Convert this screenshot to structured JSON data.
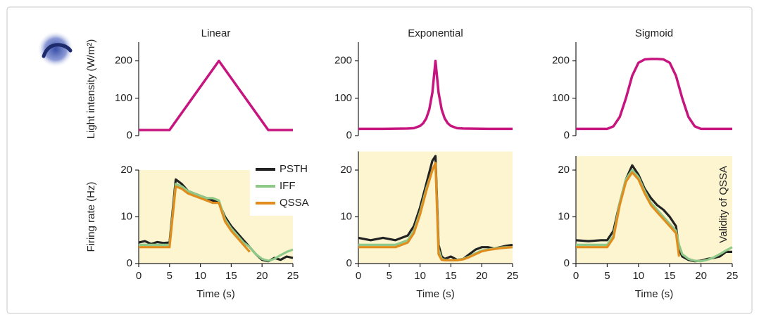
{
  "chart_data": [
    {
      "type": "line",
      "title": "Linear",
      "ylabel": "Light intensity (W/m²)",
      "xlim": [
        0,
        25
      ],
      "ylim": [
        0,
        250
      ],
      "yticks": [
        0,
        100,
        200
      ],
      "x": [
        0,
        5,
        13,
        21,
        25
      ],
      "values": [
        15,
        15,
        200,
        15,
        15
      ],
      "color": "#c7157f"
    },
    {
      "type": "line",
      "title": "Exponential",
      "xlim": [
        0,
        25
      ],
      "ylim": [
        0,
        250
      ],
      "yticks": [
        0,
        100,
        200
      ],
      "x": [
        0,
        4,
        8,
        9,
        10,
        10.5,
        11,
        11.5,
        12,
        12.5,
        13,
        13.5,
        14,
        14.5,
        15,
        16,
        17,
        21,
        25
      ],
      "values": [
        18,
        18,
        19,
        20,
        26,
        33,
        46,
        70,
        115,
        200,
        115,
        70,
        46,
        33,
        26,
        20,
        19,
        18,
        18
      ],
      "color": "#c7157f"
    },
    {
      "type": "line",
      "title": "Sigmoid",
      "xlim": [
        0,
        25
      ],
      "ylim": [
        0,
        250
      ],
      "yticks": [
        0,
        100,
        200
      ],
      "x": [
        0,
        5,
        6,
        7,
        8,
        9,
        10,
        11,
        12,
        13,
        14,
        15,
        16,
        17,
        18,
        19,
        20,
        25
      ],
      "values": [
        18,
        18,
        25,
        50,
        100,
        160,
        195,
        204,
        205,
        205,
        204,
        195,
        160,
        100,
        50,
        25,
        18,
        18
      ],
      "color": "#c7157f"
    },
    {
      "type": "line",
      "ylabel": "Firing rate (Hz)",
      "xlabel": "Time (s)",
      "xlim": [
        0,
        25
      ],
      "ylim": [
        0,
        20
      ],
      "yticks": [
        0,
        10,
        20
      ],
      "xticks": [
        0,
        5,
        10,
        15,
        20,
        25
      ],
      "shade_color": "#fcf5cf",
      "legend": "upper right",
      "x": [
        0,
        1,
        2,
        3,
        4,
        5,
        6,
        7,
        8,
        9,
        10,
        11,
        12,
        13,
        14,
        15,
        16,
        17,
        18,
        19,
        20,
        21,
        22,
        23,
        24,
        25
      ],
      "series": [
        {
          "name": "PSTH",
          "color": "#222222",
          "values": [
            4.5,
            4.8,
            4.2,
            4.6,
            4.4,
            4.5,
            18,
            17,
            15.5,
            15,
            14.5,
            14,
            13.5,
            13,
            10,
            8,
            6.5,
            5,
            3.5,
            2,
            0.8,
            0.5,
            1.2,
            0.8,
            1.5,
            1.2
          ]
        },
        {
          "name": "IFF",
          "color": "#8fc98a",
          "values": [
            4,
            4,
            4,
            4,
            4,
            4,
            17,
            16.5,
            15.5,
            15,
            14.5,
            14,
            14,
            13.5,
            9.5,
            7.5,
            6,
            4.5,
            3.5,
            2,
            1,
            0.6,
            1,
            1.8,
            2.5,
            3
          ]
        },
        {
          "name": "QSSA",
          "color": "#e08d1e",
          "values": [
            3.5,
            3.5,
            3.5,
            3.5,
            3.5,
            3.5,
            16.5,
            16,
            15,
            14.5,
            14,
            13.5,
            13,
            13,
            9,
            7,
            5.5,
            4,
            2.5,
            null,
            null,
            null,
            null,
            null,
            null,
            null
          ]
        }
      ]
    },
    {
      "type": "line",
      "xlabel": "Time (s)",
      "xlim": [
        0,
        25
      ],
      "ylim": [
        0,
        24
      ],
      "yticks": [
        0,
        10,
        20
      ],
      "xticks": [
        0,
        5,
        10,
        15,
        20,
        25
      ],
      "shade_color": "#fcf5cf",
      "x": [
        0,
        2,
        4,
        6,
        8,
        9,
        10,
        11,
        12,
        12.5,
        13,
        13.5,
        14,
        15,
        16,
        17,
        18,
        19,
        20,
        21,
        22,
        23,
        24,
        25
      ],
      "series": [
        {
          "name": "PSTH",
          "color": "#222222",
          "values": [
            5.5,
            5,
            5.5,
            5,
            6,
            8,
            12,
            17,
            22,
            23,
            4,
            1.5,
            1,
            1.5,
            0.8,
            1,
            2,
            3,
            3.5,
            3.5,
            3.2,
            3.5,
            3.8,
            4
          ]
        },
        {
          "name": "IFF",
          "color": "#8fc98a",
          "values": [
            4,
            4,
            4,
            4,
            5,
            7,
            11,
            16,
            20,
            21.5,
            3,
            1,
            0.8,
            0.7,
            0.8,
            1,
            1.5,
            2.2,
            2.8,
            3,
            3.2,
            3.4,
            3.5,
            3.5
          ]
        },
        {
          "name": "QSSA",
          "color": "#e08d1e",
          "values": [
            3.5,
            3.5,
            3.5,
            3.5,
            4.5,
            6.5,
            10.5,
            15.5,
            20,
            21.5,
            2,
            0.8,
            0.7,
            0.7,
            0.7,
            0.9,
            1.4,
            2,
            2.6,
            2.9,
            3.1,
            3.3,
            3.4,
            3.5
          ]
        }
      ]
    },
    {
      "type": "line",
      "xlabel": "Time (s)",
      "annotation": "Validity of QSSA",
      "xlim": [
        0,
        25
      ],
      "ylim": [
        0,
        23
      ],
      "yticks": [
        0,
        10,
        20
      ],
      "xticks": [
        0,
        5,
        10,
        15,
        20,
        25
      ],
      "shade_color": "#fcf5cf",
      "x": [
        0,
        2,
        4,
        5,
        6,
        7,
        8,
        9,
        10,
        11,
        12,
        13,
        14,
        15,
        16,
        16.5,
        17,
        18,
        19,
        20,
        21,
        22,
        23,
        24,
        25
      ],
      "series": [
        {
          "name": "PSTH",
          "color": "#222222",
          "values": [
            5,
            4.8,
            5,
            5,
            7,
            13,
            18,
            21,
            19,
            16,
            14,
            12.5,
            11.5,
            10,
            8,
            3,
            1.5,
            0.8,
            0.5,
            0.6,
            1,
            1.2,
            1.5,
            2.5,
            2.5
          ]
        },
        {
          "name": "IFF",
          "color": "#8fc98a",
          "values": [
            4,
            4,
            4,
            4,
            6,
            13,
            18,
            20,
            18.5,
            15.5,
            13,
            11.5,
            10,
            8.5,
            7,
            4,
            2,
            1,
            0.6,
            0.5,
            0.8,
            1.3,
            2,
            2.8,
            3.5
          ]
        },
        {
          "name": "QSSA",
          "color": "#e08d1e",
          "values": [
            3.5,
            3.5,
            3.5,
            3.5,
            5.5,
            12.5,
            17.5,
            19.5,
            18,
            15,
            12.5,
            11,
            9.5,
            8,
            6.5,
            1.5,
            null,
            null,
            null,
            null,
            null,
            null,
            null,
            null,
            null
          ]
        }
      ]
    }
  ]
}
